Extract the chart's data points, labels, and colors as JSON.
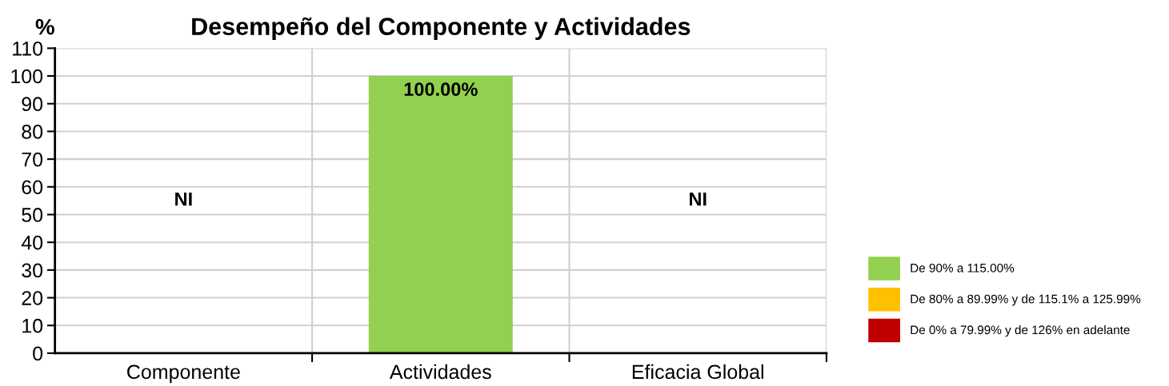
{
  "chart_data": {
    "type": "bar",
    "title": "Desempeño del Componente y Actividades",
    "ylabel": "%",
    "categories": [
      "Componente",
      "Actividades",
      "Eficacia Global"
    ],
    "series": [
      {
        "name": "De 90% a 115.00%",
        "color": "#92d050",
        "values": [
          null,
          100,
          null
        ],
        "value_labels": [
          "NI",
          "100.00%",
          "NI"
        ]
      },
      {
        "name": "De 80% a 89.99% y de 115.1% a 125.99%",
        "color": "#ffc000",
        "values": [
          null,
          null,
          null
        ]
      },
      {
        "name": "De 0% a 79.99% y de 126% en adelante",
        "color": "#c00000",
        "values": [
          null,
          null,
          null
        ]
      }
    ],
    "stacked": true,
    "ylim": [
      0,
      110
    ],
    "yticks": [
      0,
      10,
      20,
      30,
      40,
      50,
      60,
      70,
      80,
      90,
      100,
      110
    ],
    "grid": true,
    "legend": "right"
  }
}
